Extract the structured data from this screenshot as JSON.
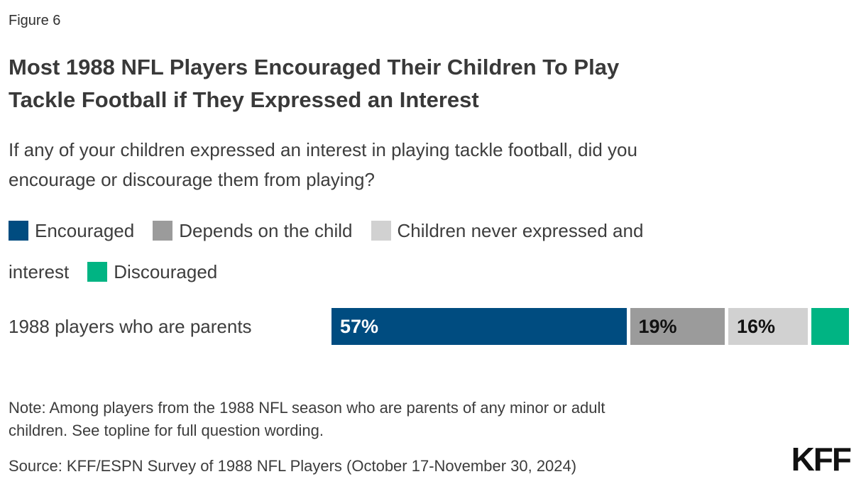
{
  "header": {
    "figure_label": "Figure 6",
    "title_lines": [
      "Most 1988 NFL Players Encouraged Their Children To Play",
      "Tackle Football if They Expressed an Interest"
    ],
    "question_lines": [
      "If any of your children expressed an interest in playing tackle football, did you",
      "encourage or discourage them from playing?"
    ]
  },
  "legend_rows": [
    [
      {
        "swatch": "#004c80",
        "text": "Encouraged"
      },
      {
        "swatch": "#9b9b9b",
        "text": "Depends on the child"
      },
      {
        "swatch": "#d1d1d1",
        "text": "Children never expressed and"
      }
    ],
    [
      {
        "text": "interest"
      },
      {
        "swatch": "#00b483",
        "text": "Discouraged"
      }
    ]
  ],
  "chart_data": {
    "type": "bar",
    "orientation": "horizontal",
    "stacked": true,
    "title": "Most 1988 NFL Players Encouraged Their Children To Play Tackle Football if They Expressed an Interest",
    "subtitle": "If any of your children expressed an interest in playing tackle football, did you encourage or discourage them from playing?",
    "categories": [
      "1988 players who are parents"
    ],
    "series": [
      {
        "name": "Encouraged",
        "values": [
          57
        ],
        "color": "#004c80",
        "bar_label": "57%",
        "bar_label_color": "#ffffff"
      },
      {
        "name": "Depends on the child",
        "values": [
          19
        ],
        "color": "#9b9b9b",
        "bar_label": "19%",
        "bar_label_color": "#111111"
      },
      {
        "name": "Children never expressed and interest",
        "values": [
          16
        ],
        "color": "#d1d1d1",
        "bar_label": "16%",
        "bar_label_color": "#111111"
      },
      {
        "name": "Discouraged",
        "values": [
          8
        ],
        "color": "#00b483",
        "bar_label": "",
        "bar_label_color": "#111111"
      }
    ],
    "xlim": [
      0,
      100
    ],
    "value_unit": "%",
    "legend_position": "top",
    "grid": false
  },
  "footer": {
    "note_lines": [
      "Note: Among players from the 1988 NFL season who are parents of any minor or adult",
      "children. See topline for full question wording."
    ],
    "source": "Source: KFF/ESPN Survey of 1988 NFL Players (October 17-November 30, 2024)",
    "logo_text": "KFF"
  }
}
